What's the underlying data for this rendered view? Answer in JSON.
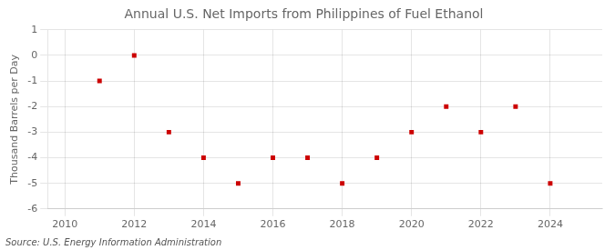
{
  "chart_data": {
    "type": "scatter",
    "title": "Annual U.S. Net Imports from Philippines of Fuel Ethanol",
    "ylabel": "Thousand Barrels per Day",
    "source": "Source: U.S. Energy Information Administration",
    "x": [
      2011,
      2012,
      2013,
      2014,
      2015,
      2016,
      2017,
      2018,
      2019,
      2020,
      2021,
      2022,
      2023,
      2024
    ],
    "values": [
      -1,
      0,
      -3,
      -4,
      -5,
      -4,
      -4,
      -5,
      -4,
      -3,
      -2,
      -3,
      -2,
      -5
    ],
    "color": "#cc0000",
    "marker": "square",
    "xlim": [
      2009.5,
      2025.5
    ],
    "xticks": [
      2010,
      2012,
      2014,
      2016,
      2018,
      2020,
      2022,
      2024
    ],
    "ylim": [
      -6,
      1
    ],
    "yticks": [
      -6,
      -5,
      -4,
      -3,
      -2,
      -1,
      0,
      1
    ],
    "grid": true
  }
}
